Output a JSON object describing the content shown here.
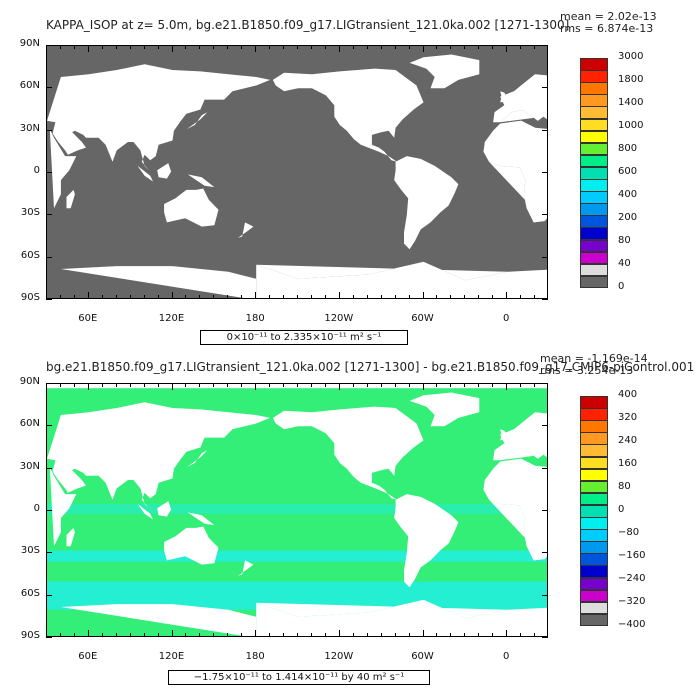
{
  "panels": [
    {
      "id": "top",
      "title": "KAPPA_ISOP at z=    5.0m, bg.e21.B1850.f09_g17.LIGtransient_121.0ka.002 [1271-1300]",
      "mean_text": "mean = 2.02e-13",
      "rms_text": "rms = 6.874e-13",
      "range_text": "0×10⁻¹¹ to 2.335×10⁻¹¹ m² s⁻¹",
      "lat_labels": [
        "90N",
        "60N",
        "30N",
        "0",
        "30S",
        "60S",
        "90S"
      ],
      "lon_labels": [
        "60E",
        "120E",
        "180",
        "120W",
        "60W",
        "0"
      ],
      "ocean_color": "#666666",
      "colorbar": {
        "labels": [
          "3000",
          "1800",
          "1400",
          "1000",
          "800",
          "600",
          "400",
          "200",
          "80",
          "40",
          "0"
        ],
        "colors": [
          "#cc0000",
          "#ff2200",
          "#ff7700",
          "#ff9922",
          "#ffbb33",
          "#ffdd22",
          "#ffff00",
          "#66ee33",
          "#00ee88",
          "#00e0b0",
          "#00eeee",
          "#00ccff",
          "#0099ee",
          "#0055dd",
          "#0000cc",
          "#7700cc",
          "#cc00cc",
          "#dddddd",
          "#666666"
        ]
      }
    },
    {
      "id": "bottom",
      "title": "bg.e21.B1850.f09_g17.LIGtransient_121.0ka.002 [1271-1300] - bg.e21.B1850.f09_g17.CMIP6-piControl.001",
      "mean_text": "mean = -1.169e-14",
      "rms_text": "rms = 3.254e-13",
      "range_text": "−1.75×10⁻¹¹ to 1.414×10⁻¹¹ by 40 m² s⁻¹",
      "lat_labels": [
        "90N",
        "60N",
        "30N",
        "0",
        "30S",
        "60S",
        "90S"
      ],
      "lon_labels": [
        "60E",
        "120E",
        "180",
        "120W",
        "60W",
        "0"
      ],
      "ocean_color": "#33ee77",
      "ocean_secondary_color": "#22eedd",
      "colorbar": {
        "labels": [
          "400",
          "320",
          "240",
          "160",
          "80",
          "0",
          "−80",
          "−160",
          "−240",
          "−320",
          "−400"
        ],
        "colors": [
          "#cc0000",
          "#ff2200",
          "#ff7700",
          "#ff9922",
          "#ffbb33",
          "#ffdd22",
          "#ffff00",
          "#66ee33",
          "#00ee88",
          "#00e0b0",
          "#00eeee",
          "#00ccff",
          "#0099ee",
          "#0055dd",
          "#0000cc",
          "#7700cc",
          "#cc00cc",
          "#dddddd",
          "#666666"
        ]
      }
    }
  ]
}
